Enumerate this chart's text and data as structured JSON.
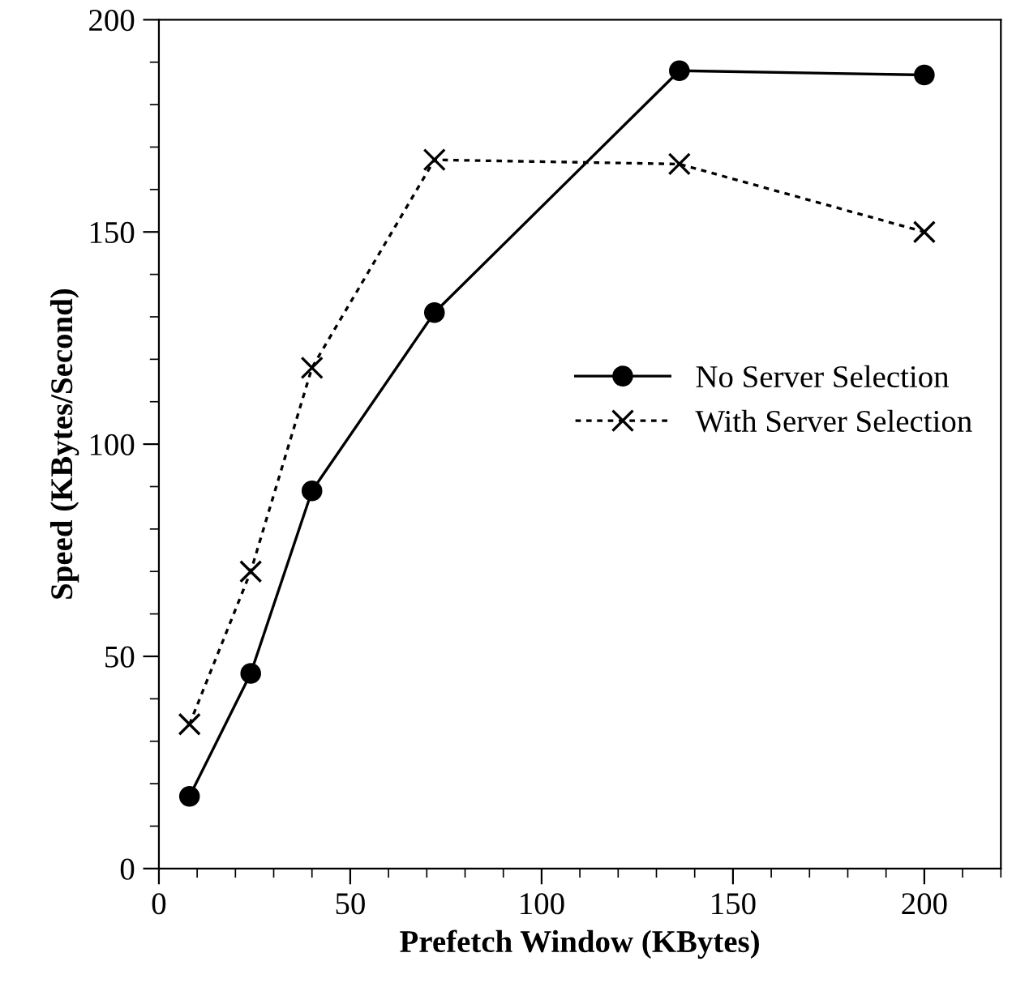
{
  "chart_data": {
    "type": "line",
    "xlabel": "Prefetch Window (KBytes)",
    "ylabel": "Speed (KBytes/Second)",
    "x": [
      8,
      24,
      40,
      72,
      136,
      200
    ],
    "series": [
      {
        "name": "No Server Selection",
        "color": "#000000",
        "values": [
          17,
          46,
          89,
          131,
          188,
          187
        ],
        "marker": "circle",
        "line_style": "solid"
      },
      {
        "name": "With Server Selection",
        "color": "#000000",
        "values": [
          34,
          70,
          118,
          167,
          166,
          150
        ],
        "marker": "cross",
        "line_style": "dotted"
      }
    ],
    "xlim": [
      0,
      220
    ],
    "xticks": [
      0,
      50,
      100,
      150,
      200
    ],
    "ylim": [
      0,
      200
    ],
    "yticks": [
      0,
      50,
      100,
      150,
      200
    ],
    "grid": false,
    "legend": "right"
  }
}
